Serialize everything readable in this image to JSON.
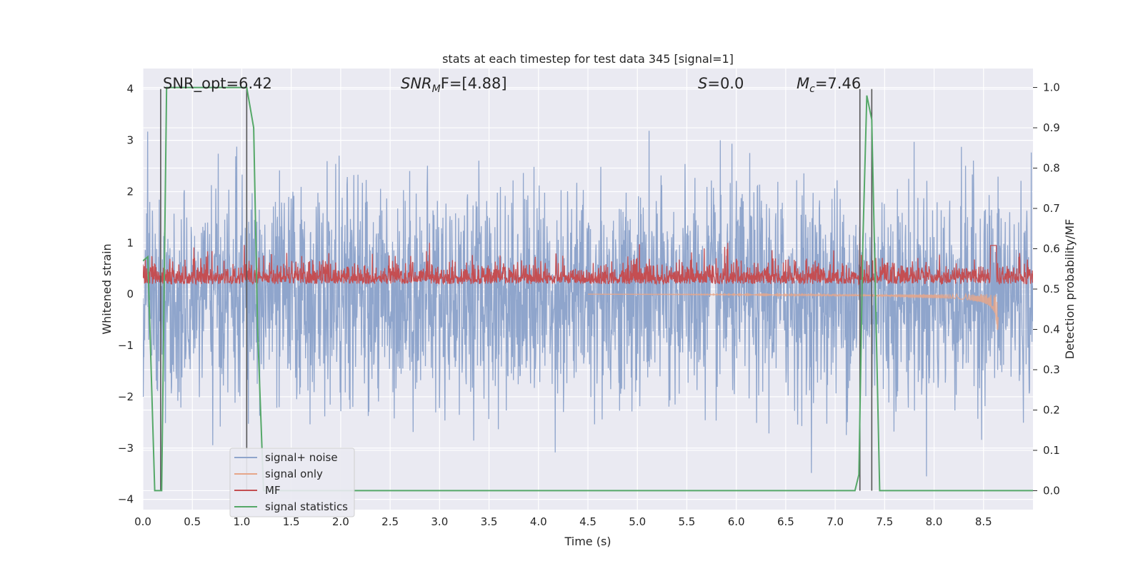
{
  "chart_data": {
    "type": "line",
    "title": "stats at each timestep for test data 345 [signal=1]",
    "xlabel": "Time (s)",
    "ylabel": "Whitened strain",
    "y2label": "Detection probability/MF",
    "xlim": [
      0.0,
      9.0
    ],
    "ylim": [
      -4.2,
      4.4
    ],
    "y2lim": [
      -0.047,
      1.047
    ],
    "xticks": [
      "0.0",
      "0.5",
      "1.0",
      "1.5",
      "2.0",
      "2.5",
      "3.0",
      "3.5",
      "4.0",
      "4.5",
      "5.0",
      "5.5",
      "6.0",
      "6.5",
      "7.0",
      "7.5",
      "8.0",
      "8.5"
    ],
    "yticks": [
      "−4",
      "−3",
      "−2",
      "−1",
      "0",
      "1",
      "2",
      "3",
      "4"
    ],
    "y2ticks": [
      "0.0",
      "0.1",
      "0.2",
      "0.3",
      "0.4",
      "0.5",
      "0.6",
      "0.7",
      "0.8",
      "0.9",
      "1.0"
    ],
    "grid": true,
    "legend_position": "lower-left",
    "annotations": {
      "snr_opt": "SNR_opt=6.42",
      "snr_mf_a": "SNR",
      "snr_mf_b": "M",
      "snr_mf_c": "F=[4.88]",
      "s_a": "S",
      "s_b": "=0.0",
      "mc_a": "M",
      "mc_b": "c",
      "mc_c": "=7.46"
    },
    "vertical_lines_x": [
      0.18,
      1.05,
      7.25,
      7.37
    ],
    "series": [
      {
        "name": "signal+ noise",
        "color": "#8fa5cc",
        "kind": "noise",
        "sigma": 1.0,
        "x_range": [
          0.0,
          9.0
        ]
      },
      {
        "name": "signal only",
        "color": "#e6a689",
        "kind": "chirp",
        "x_range": [
          4.5,
          8.65
        ],
        "amplitude_max": 0.7
      },
      {
        "name": "MF",
        "color": "#c44e52",
        "kind": "mf",
        "center": 0.25,
        "x_range": [
          0.0,
          9.0
        ]
      },
      {
        "name": "signal statistics",
        "color": "#55a868",
        "x": [
          0.0,
          0.05,
          0.12,
          0.19,
          0.24,
          0.3,
          0.5,
          0.8,
          1.05,
          1.12,
          1.16,
          1.22,
          1.5,
          3.0,
          5.0,
          7.0,
          7.2,
          7.24,
          7.28,
          7.32,
          7.37,
          7.45,
          7.6,
          8.0,
          9.0
        ],
        "y": [
          0.57,
          0.58,
          0.0,
          0.0,
          1.0,
          1.0,
          1.0,
          1.0,
          1.0,
          0.9,
          0.4,
          0.0,
          0.0,
          0.0,
          0.0,
          0.0,
          0.0,
          0.04,
          0.62,
          0.98,
          0.92,
          0.0,
          0.0,
          0.0,
          0.0
        ]
      }
    ]
  },
  "colors": {
    "plot_bg": "#eaeaf2",
    "grid": "#ffffff",
    "vline": "#555555"
  }
}
